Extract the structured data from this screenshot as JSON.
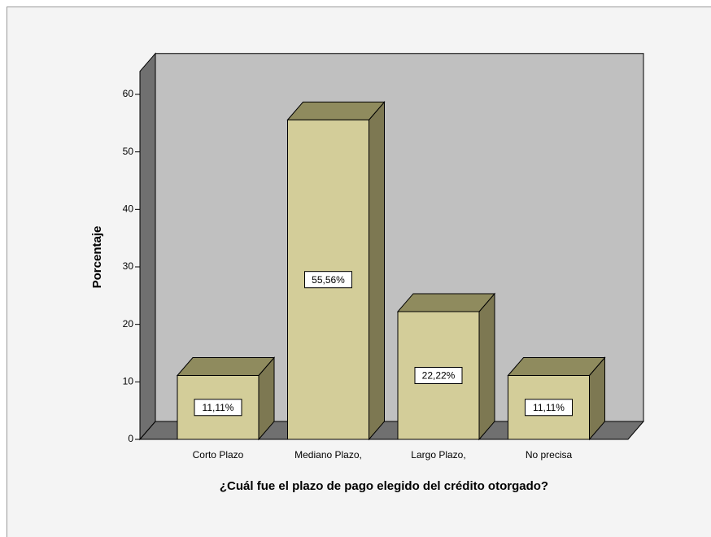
{
  "chart_data": {
    "type": "bar3d",
    "x_label": "¿Cuál fue el plazo de pago elegido del crédito otorgado?",
    "y_label": "Porcentaje",
    "categories": [
      "Corto Plazo",
      "Mediano Plazo,",
      "Largo Plazo,",
      "No precisa"
    ],
    "values": [
      11.11,
      55.56,
      22.22,
      11.11
    ],
    "value_labels": [
      "11,11%",
      "55,56%",
      "22,22%",
      "11,11%"
    ],
    "color": "#d3cd99",
    "ylim": [
      0,
      64
    ],
    "yticks": [
      0,
      10,
      20,
      30,
      40,
      50,
      60
    ]
  }
}
